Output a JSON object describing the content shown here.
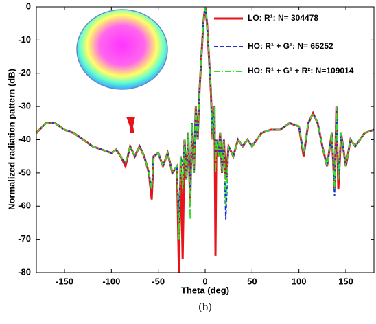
{
  "chart_data": {
    "type": "line",
    "xlabel": "Theta (deg)",
    "ylabel": "Normalized radiation pattern (dB)",
    "caption": "(b)",
    "x": [
      -180,
      -170,
      -160,
      -150,
      -140,
      -130,
      -120,
      -110,
      -100,
      -95,
      -90,
      -85,
      -80,
      -75,
      -70,
      -65,
      -60,
      -57,
      -55,
      -50,
      -45,
      -40,
      -35,
      -30,
      -28,
      -26,
      -24,
      -22,
      -20,
      -18,
      -16,
      -14,
      -12,
      -10,
      -8,
      -6,
      -4,
      -2,
      0,
      2,
      4,
      6,
      8,
      10,
      11,
      12,
      14,
      16,
      18,
      20,
      22,
      25,
      30,
      35,
      40,
      45,
      50,
      55,
      60,
      70,
      80,
      90,
      100,
      105,
      110,
      115,
      120,
      125,
      130,
      135,
      138,
      140,
      142,
      145,
      150,
      155,
      160,
      170,
      180
    ],
    "series": [
      {
        "name": "LO: R¹: N= 304478",
        "color": "#e8141b",
        "linestyle": "solid",
        "linewidth": 3,
        "values": [
          -38,
          -35,
          -35,
          -37,
          -38,
          -40,
          -42,
          -43,
          -44,
          -43,
          -45,
          -48,
          -42,
          -45,
          -42,
          -45,
          -50,
          -58,
          -45,
          -44,
          -48,
          -44,
          -50,
          -48,
          -80,
          -45,
          -76,
          -40,
          -52,
          -38,
          -60,
          -35,
          -50,
          -30,
          -40,
          -25,
          -15,
          -5,
          0,
          -5,
          -15,
          -25,
          -40,
          -30,
          -75,
          -40,
          -45,
          -38,
          -50,
          -40,
          -52,
          -42,
          -45,
          -40,
          -42,
          -40,
          -42,
          -40,
          -38,
          -37,
          -37,
          -35,
          -36,
          -45,
          -35,
          -32,
          -35,
          -42,
          -48,
          -38,
          -55,
          -30,
          -55,
          -38,
          -48,
          -40,
          -42,
          -38,
          -37
        ]
      },
      {
        "name": "HO: R¹ + G¹: N= 65252",
        "color": "#1a2fd6",
        "linestyle": "dashed",
        "linewidth": 2,
        "values": [
          -38,
          -35,
          -35,
          -37,
          -38,
          -40,
          -42,
          -43,
          -44,
          -43,
          -45,
          -47,
          -42,
          -45,
          -42,
          -45,
          -50,
          -55,
          -45,
          -44,
          -48,
          -44,
          -50,
          -48,
          -64,
          -45,
          -48,
          -40,
          -52,
          -38,
          -55,
          -35,
          -50,
          -30,
          -40,
          -25,
          -15,
          -5,
          0,
          -5,
          -15,
          -25,
          -40,
          -30,
          -45,
          -40,
          -45,
          -38,
          -50,
          -40,
          -64,
          -42,
          -45,
          -40,
          -42,
          -40,
          -42,
          -40,
          -38,
          -37,
          -37,
          -35,
          -36,
          -44,
          -35,
          -32,
          -35,
          -42,
          -48,
          -38,
          -57,
          -30,
          -52,
          -38,
          -48,
          -40,
          -42,
          -38,
          -37
        ]
      },
      {
        "name": "HO: R¹ + G¹ + R²: N=109014",
        "color": "#33e02e",
        "linestyle": "dashdot",
        "linewidth": 2,
        "values": [
          -38,
          -35,
          -35,
          -37,
          -38,
          -40,
          -42,
          -43,
          -44,
          -43,
          -45,
          -47,
          -42,
          -45,
          -42,
          -45,
          -50,
          -55,
          -45,
          -44,
          -48,
          -44,
          -50,
          -48,
          -70,
          -45,
          -55,
          -40,
          -52,
          -38,
          -64,
          -35,
          -50,
          -30,
          -40,
          -25,
          -15,
          -5,
          0,
          -5,
          -15,
          -25,
          -40,
          -30,
          -50,
          -40,
          -45,
          -38,
          -50,
          -40,
          -60,
          -42,
          -45,
          -40,
          -42,
          -40,
          -42,
          -40,
          -38,
          -37,
          -37,
          -35,
          -36,
          -44,
          -35,
          -32,
          -35,
          -42,
          -48,
          -38,
          -55,
          -30,
          -52,
          -38,
          -48,
          -40,
          -42,
          -38,
          -37
        ]
      }
    ],
    "xlim": [
      -180,
      180
    ],
    "xticks": [
      -150,
      -100,
      -50,
      0,
      50,
      100,
      150
    ],
    "ylim": [
      -80,
      0
    ],
    "yticks": [
      0,
      -10,
      -20,
      -30,
      -40,
      -50,
      -60,
      -70,
      -80
    ],
    "grid": false,
    "legend": "upper right"
  }
}
